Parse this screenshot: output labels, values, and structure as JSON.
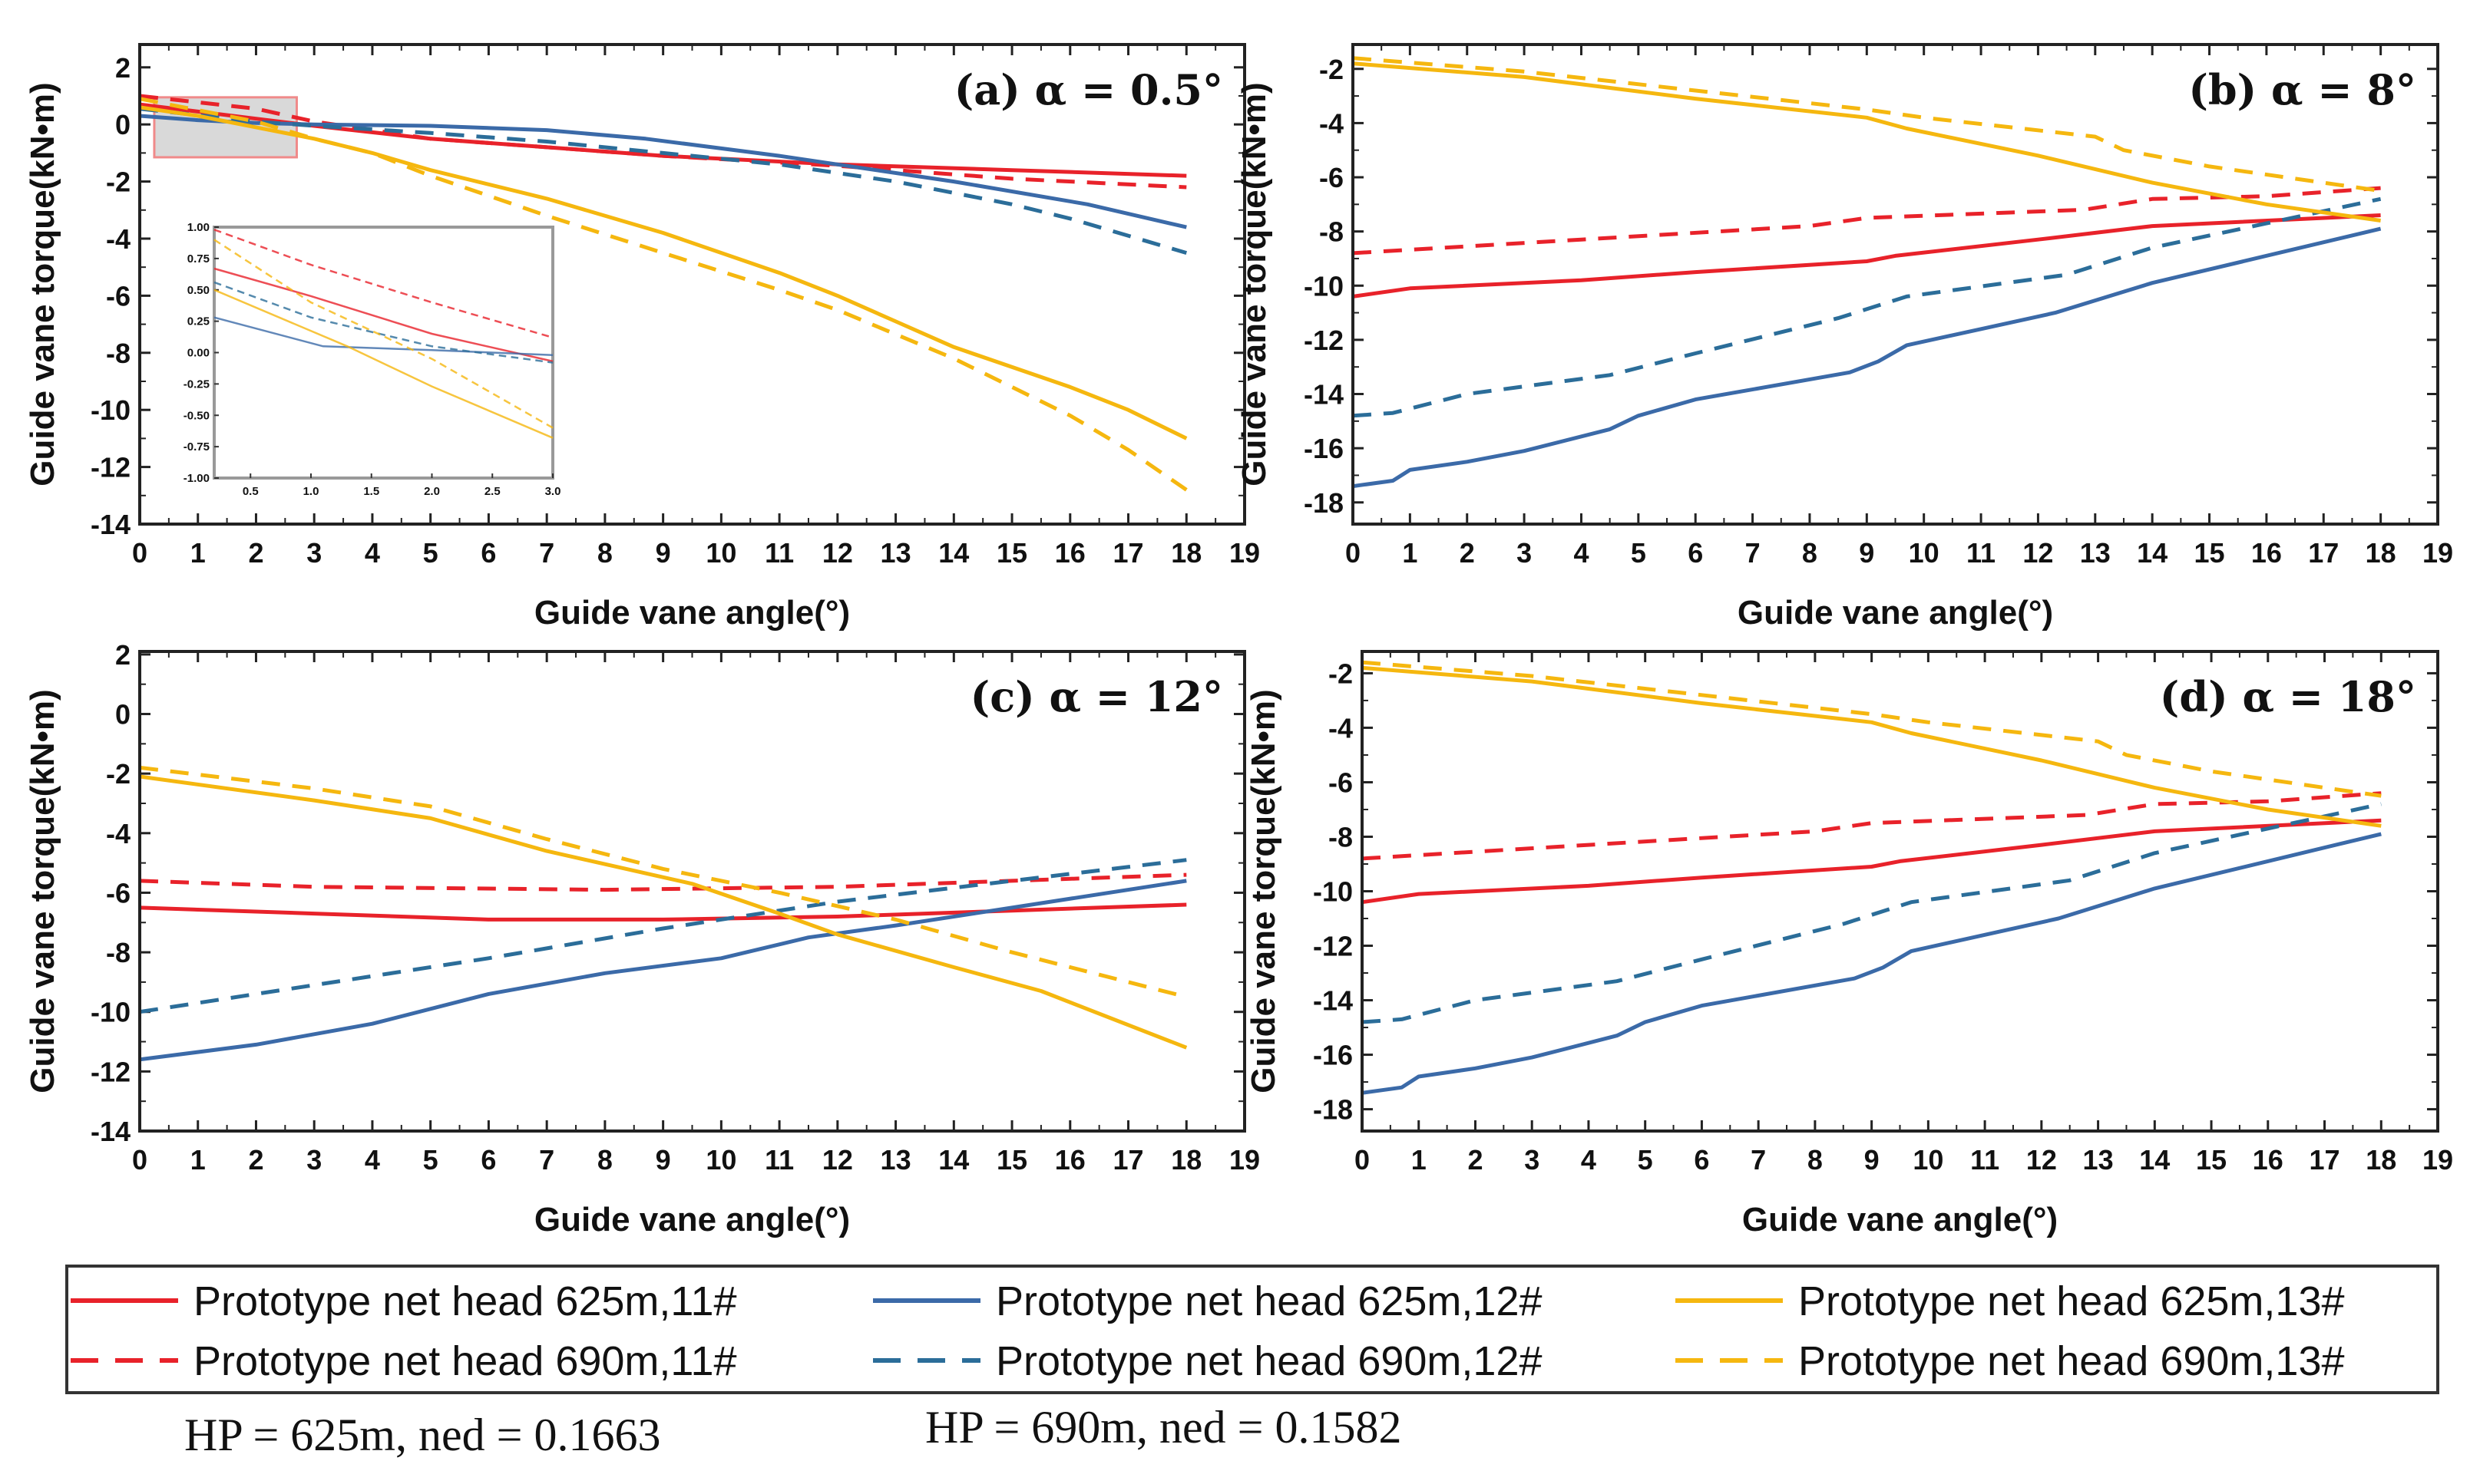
{
  "chart_data": {
    "type": "line",
    "legend": {
      "placement": "bottom",
      "entries": [
        {
          "label": "Prototype net head 625m,11#",
          "color": "#e8222a",
          "dash": "solid"
        },
        {
          "label": "Prototype net head 625m,12#",
          "color": "#3b6aa8",
          "dash": "solid"
        },
        {
          "label": "Prototype net head 625m,13#",
          "color": "#f5b70f",
          "dash": "solid"
        },
        {
          "label": "Prototype net head 690m,11#",
          "color": "#e8222a",
          "dash": "dashed"
        },
        {
          "label": "Prototype net head 690m,12#",
          "color": "#2b6d99",
          "dash": "dashed"
        },
        {
          "label": "Prototype net head 690m,13#",
          "color": "#f5b70f",
          "dash": "dashed"
        }
      ]
    },
    "notes": [
      "HP = 625m, ned = 0.1663",
      "HP = 690m, ned = 0.1582"
    ],
    "panels": [
      {
        "title": "(a) α = 0.5°",
        "xlabel": "Guide vane angle(°)",
        "ylabel": "Guide vane torque(kN•m)",
        "xlim": [
          0,
          19
        ],
        "ylim": [
          -14,
          2.8
        ],
        "xticks": [
          0,
          1,
          2,
          3,
          4,
          5,
          6,
          7,
          8,
          9,
          10,
          11,
          12,
          13,
          14,
          15,
          16,
          17,
          18,
          19
        ],
        "yticks": [
          2,
          0,
          -2,
          -4,
          -6,
          -8,
          -10,
          -12,
          -14
        ],
        "series": [
          {
            "legend": 0,
            "x": [
              0,
              1,
              2,
              3,
              5,
              7,
              9,
              12,
              15,
              18
            ],
            "y": [
              0.7,
              0.45,
              0.2,
              -0.05,
              -0.5,
              -0.8,
              -1.1,
              -1.4,
              -1.6,
              -1.8
            ]
          },
          {
            "legend": 3,
            "x": [
              0,
              2,
              3,
              5,
              7,
              9,
              12,
              15,
              18
            ],
            "y": [
              1.0,
              0.55,
              0.1,
              -0.5,
              -0.8,
              -1.1,
              -1.45,
              -1.9,
              -2.2
            ]
          },
          {
            "legend": 1,
            "x": [
              0,
              1,
              2,
              3,
              5,
              7,
              8.7,
              11,
              12,
              14,
              16.3,
              18
            ],
            "y": [
              0.3,
              0.15,
              0.05,
              0,
              -0.05,
              -0.2,
              -0.5,
              -1.1,
              -1.4,
              -2.0,
              -2.8,
              -3.6
            ]
          },
          {
            "legend": 4,
            "x": [
              0,
              2,
              3,
              5,
              7,
              9,
              11,
              13,
              15,
              16,
              18
            ],
            "y": [
              0.55,
              0.1,
              -0.05,
              -0.3,
              -0.6,
              -1.0,
              -1.4,
              -2.0,
              -2.8,
              -3.3,
              -4.5
            ]
          },
          {
            "legend": 2,
            "x": [
              0,
              1,
              2,
              3,
              4,
              5,
              7,
              9,
              11,
              12,
              13,
              14,
              16,
              17,
              18
            ],
            "y": [
              0.6,
              0.3,
              -0.1,
              -0.5,
              -1.0,
              -1.6,
              -2.6,
              -3.8,
              -5.2,
              -6.0,
              -6.9,
              -7.8,
              -9.2,
              -10.0,
              -11.0
            ]
          },
          {
            "legend": 5,
            "x": [
              0,
              2,
              3,
              4,
              5,
              7,
              9,
              11,
              12,
              14,
              16,
              17,
              18
            ],
            "y": [
              0.9,
              0.1,
              -0.5,
              -1.0,
              -1.8,
              -3.2,
              -4.5,
              -5.8,
              -6.5,
              -8.2,
              -10.2,
              -11.4,
              -12.8
            ]
          }
        ],
        "highlight": {
          "x": [
            0.25,
            2.7
          ],
          "y": [
            -1.15,
            0.95
          ]
        },
        "inset": {
          "xlim": [
            0.2,
            3.0
          ],
          "ylim": [
            -1.0,
            1.0
          ],
          "xticks": [
            "0.5",
            "1.0",
            "1.5",
            "2.0",
            "2.5",
            "3.0"
          ],
          "yticks": [
            "1.00",
            "0.75",
            "0.50",
            "0.25",
            "0.00",
            "-0.25",
            "-0.50",
            "-0.75",
            "-1.00"
          ],
          "series": [
            {
              "legend": 3,
              "x": [
                0.2,
                1,
                2,
                3
              ],
              "y": [
                0.98,
                0.7,
                0.4,
                0.12
              ]
            },
            {
              "legend": 0,
              "x": [
                0.2,
                1,
                2,
                3
              ],
              "y": [
                0.67,
                0.45,
                0.15,
                -0.07
              ]
            },
            {
              "legend": 1,
              "x": [
                0.2,
                1.1,
                2,
                3
              ],
              "y": [
                0.28,
                0.05,
                0.02,
                -0.02
              ]
            },
            {
              "legend": 4,
              "x": [
                0.2,
                1,
                2,
                3
              ],
              "y": [
                0.56,
                0.28,
                0.05,
                -0.08
              ]
            },
            {
              "legend": 2,
              "x": [
                0.2,
                1.3,
                2,
                3
              ],
              "y": [
                0.5,
                0.05,
                -0.27,
                -0.68
              ]
            },
            {
              "legend": 5,
              "x": [
                0.2,
                1,
                2,
                3
              ],
              "y": [
                0.9,
                0.4,
                -0.05,
                -0.6
              ]
            }
          ]
        }
      },
      {
        "title": "(b) α = 8°",
        "xlabel": "Guide vane angle(°)",
        "ylabel": "Guide vane torque(kN•m)",
        "xlim": [
          0,
          19
        ],
        "ylim": [
          -18.8,
          -1.1
        ],
        "xticks": [
          0,
          1,
          2,
          3,
          4,
          5,
          6,
          7,
          8,
          9,
          10,
          11,
          12,
          13,
          14,
          15,
          16,
          17,
          18,
          19
        ],
        "yticks": [
          -2,
          -4,
          -6,
          -8,
          -10,
          -12,
          -14,
          -16,
          -18
        ],
        "series": [
          {
            "legend": 0,
            "x": [
              0,
              1,
              4,
              6,
              9,
              9.5,
              12,
              14,
              18
            ],
            "y": [
              -10.4,
              -10.1,
              -9.8,
              -9.5,
              -9.1,
              -8.9,
              -8.3,
              -7.8,
              -7.4
            ]
          },
          {
            "legend": 3,
            "x": [
              0,
              4,
              8,
              9,
              12.8,
              14,
              16,
              18
            ],
            "y": [
              -8.8,
              -8.3,
              -7.8,
              -7.5,
              -7.2,
              -6.8,
              -6.7,
              -6.4
            ]
          },
          {
            "legend": 1,
            "x": [
              0,
              0.7,
              1,
              2,
              3,
              4.5,
              5,
              6,
              8.7,
              9.2,
              9.7,
              11,
              12.3,
              14,
              18
            ],
            "y": [
              -17.4,
              -17.2,
              -16.8,
              -16.5,
              -16.1,
              -15.3,
              -14.8,
              -14.2,
              -13.2,
              -12.8,
              -12.2,
              -11.6,
              -11.0,
              -9.9,
              -7.9
            ]
          },
          {
            "legend": 4,
            "x": [
              0,
              0.7,
              2,
              4.5,
              6,
              8.5,
              9.7,
              12.5,
              14,
              16,
              18
            ],
            "y": [
              -14.8,
              -14.7,
              -14.0,
              -13.3,
              -12.5,
              -11.2,
              -10.4,
              -9.6,
              -8.6,
              -7.7,
              -6.8
            ]
          },
          {
            "legend": 2,
            "x": [
              0,
              3,
              6,
              9,
              9.7,
              12,
              14,
              16,
              18
            ],
            "y": [
              -1.8,
              -2.3,
              -3.1,
              -3.8,
              -4.2,
              -5.2,
              -6.2,
              -7.0,
              -7.6
            ]
          },
          {
            "legend": 5,
            "x": [
              0,
              3,
              6,
              9,
              10,
              13,
              13.5,
              15,
              18
            ],
            "y": [
              -1.6,
              -2.1,
              -2.8,
              -3.5,
              -3.8,
              -4.5,
              -5.0,
              -5.6,
              -6.5
            ]
          }
        ]
      },
      {
        "title": "(c) α = 12°",
        "xlabel": "Guide vane angle(°)",
        "ylabel": "Guide vane torque(kN•m)",
        "xlim": [
          0,
          19
        ],
        "ylim": [
          -14,
          2.1
        ],
        "xticks": [
          0,
          1,
          2,
          3,
          4,
          5,
          6,
          7,
          8,
          9,
          10,
          11,
          12,
          13,
          14,
          15,
          16,
          17,
          18,
          19
        ],
        "yticks": [
          2,
          0,
          -2,
          -4,
          -6,
          -8,
          -10,
          -12,
          -14
        ],
        "series": [
          {
            "legend": 0,
            "x": [
              0,
              3,
              6,
              9,
              12,
              15,
              18
            ],
            "y": [
              -6.5,
              -6.7,
              -6.9,
              -6.9,
              -6.8,
              -6.6,
              -6.4
            ]
          },
          {
            "legend": 3,
            "x": [
              0,
              3,
              8,
              12,
              15,
              18
            ],
            "y": [
              -5.6,
              -5.8,
              -5.9,
              -5.8,
              -5.6,
              -5.4
            ]
          },
          {
            "legend": 1,
            "x": [
              0,
              2,
              4,
              6,
              8,
              10,
              11.5,
              13,
              15,
              18
            ],
            "y": [
              -11.6,
              -11.1,
              -10.4,
              -9.4,
              -8.7,
              -8.2,
              -7.5,
              -7.1,
              -6.5,
              -5.6
            ]
          },
          {
            "legend": 4,
            "x": [
              0,
              3,
              6,
              9,
              12,
              15,
              18
            ],
            "y": [
              -10.0,
              -9.1,
              -8.2,
              -7.2,
              -6.3,
              -5.6,
              -4.9
            ]
          },
          {
            "legend": 2,
            "x": [
              0,
              3,
              5,
              7,
              9.5,
              11,
              12,
              14,
              15.5,
              18
            ],
            "y": [
              -2.1,
              -2.9,
              -3.5,
              -4.6,
              -5.7,
              -6.7,
              -7.4,
              -8.5,
              -9.3,
              -11.2
            ]
          },
          {
            "legend": 5,
            "x": [
              0,
              3,
              5,
              7,
              9,
              11,
              13,
              15,
              18
            ],
            "y": [
              -1.8,
              -2.5,
              -3.1,
              -4.2,
              -5.2,
              -6.0,
              -6.9,
              -8.0,
              -9.5
            ]
          }
        ]
      },
      {
        "title": "(d) α = 18°",
        "xlabel": "Guide vane angle(°)",
        "ylabel": "Guide vane torque(kN•m)",
        "xlim": [
          0,
          19
        ],
        "ylim": [
          -18.8,
          -1.2
        ],
        "xticks": [
          0,
          1,
          2,
          3,
          4,
          5,
          6,
          7,
          8,
          9,
          10,
          11,
          12,
          13,
          14,
          15,
          16,
          17,
          18,
          19
        ],
        "yticks": [
          -2,
          -4,
          -6,
          -8,
          -10,
          -12,
          -14,
          -16,
          -18
        ],
        "series": [
          {
            "legend": 0,
            "x": [
              0,
              1,
              4,
              6,
              9,
              9.5,
              12,
              14,
              18
            ],
            "y": [
              -10.4,
              -10.1,
              -9.8,
              -9.5,
              -9.1,
              -8.9,
              -8.3,
              -7.8,
              -7.4
            ]
          },
          {
            "legend": 3,
            "x": [
              0,
              4,
              8,
              9,
              12.8,
              14,
              16,
              18
            ],
            "y": [
              -8.8,
              -8.3,
              -7.8,
              -7.5,
              -7.2,
              -6.8,
              -6.7,
              -6.4
            ]
          },
          {
            "legend": 1,
            "x": [
              0,
              0.7,
              1,
              2,
              3,
              4.5,
              5,
              6,
              8.7,
              9.2,
              9.7,
              11,
              12.3,
              14,
              18
            ],
            "y": [
              -17.4,
              -17.2,
              -16.8,
              -16.5,
              -16.1,
              -15.3,
              -14.8,
              -14.2,
              -13.2,
              -12.8,
              -12.2,
              -11.6,
              -11.0,
              -9.9,
              -7.9
            ]
          },
          {
            "legend": 4,
            "x": [
              0,
              0.7,
              2,
              4.5,
              6,
              8.5,
              9.7,
              12.5,
              14,
              16,
              18
            ],
            "y": [
              -14.8,
              -14.7,
              -14.0,
              -13.3,
              -12.5,
              -11.2,
              -10.4,
              -9.6,
              -8.6,
              -7.7,
              -6.8
            ]
          },
          {
            "legend": 2,
            "x": [
              0,
              3,
              6,
              9,
              9.7,
              12,
              14,
              16,
              18
            ],
            "y": [
              -1.8,
              -2.3,
              -3.1,
              -3.8,
              -4.2,
              -5.2,
              -6.2,
              -7.0,
              -7.6
            ]
          },
          {
            "legend": 5,
            "x": [
              0,
              3,
              6,
              9,
              10,
              13,
              13.5,
              15,
              18
            ],
            "y": [
              -1.6,
              -2.1,
              -2.8,
              -3.5,
              -3.8,
              -4.5,
              -5.0,
              -5.6,
              -6.5
            ]
          }
        ]
      }
    ]
  }
}
